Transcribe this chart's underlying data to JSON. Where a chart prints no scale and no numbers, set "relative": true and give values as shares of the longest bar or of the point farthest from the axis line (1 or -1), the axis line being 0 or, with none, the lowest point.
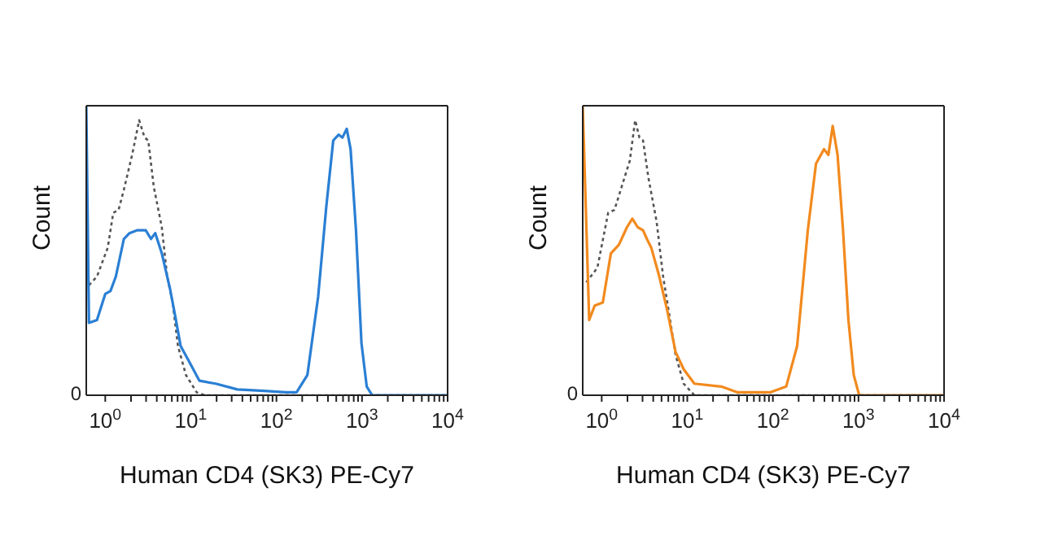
{
  "chart_data": [
    {
      "type": "line",
      "xlabel": "Human CD4 (SK3) PE-Cy7",
      "ylabel": "Count",
      "relative": true,
      "log": "x",
      "xlim": [
        0.6,
        10000
      ],
      "xticks": [
        {
          "value": 1,
          "label": "10$^{0}$"
        },
        {
          "value": 2,
          "label": null
        },
        {
          "value": 3,
          "label": null
        },
        {
          "value": 4,
          "label": null
        },
        {
          "value": 5,
          "label": null
        },
        {
          "value": 6,
          "label": null
        },
        {
          "value": 7,
          "label": null
        },
        {
          "value": 8,
          "label": null
        },
        {
          "value": 9,
          "label": null
        },
        {
          "value": 10,
          "label": "10$^{1}$"
        },
        {
          "value": 20,
          "label": null
        },
        {
          "value": 30,
          "label": null
        },
        {
          "value": 40,
          "label": null
        },
        {
          "value": 50,
          "label": null
        },
        {
          "value": 60,
          "label": null
        },
        {
          "value": 70,
          "label": null
        },
        {
          "value": 80,
          "label": null
        },
        {
          "value": 90,
          "label": null
        },
        {
          "value": 100,
          "label": "10$^{2}$"
        },
        {
          "value": 200,
          "label": null
        },
        {
          "value": 300,
          "label": null
        },
        {
          "value": 400,
          "label": null
        },
        {
          "value": 500,
          "label": null
        },
        {
          "value": 600,
          "label": null
        },
        {
          "value": 700,
          "label": null
        },
        {
          "value": 800,
          "label": null
        },
        {
          "value": 900,
          "label": null
        },
        {
          "value": 1000,
          "label": "10$^{3}$"
        },
        {
          "value": 2000,
          "label": null
        },
        {
          "value": 3000,
          "label": null
        },
        {
          "value": 4000,
          "label": null
        },
        {
          "value": 5000,
          "label": null
        },
        {
          "value": 6000,
          "label": null
        },
        {
          "value": 7000,
          "label": null
        },
        {
          "value": 8000,
          "label": null
        },
        {
          "value": 9000,
          "label": null
        },
        {
          "value": 10000,
          "label": "10$^{4}$"
        }
      ],
      "annotations": [
        "0"
      ],
      "marker": "none",
      "series": [
        {
          "color": "#555555",
          "line_style": "dotted",
          "x": [
            0.645,
            0.8,
            1.07,
            1.24,
            1.43,
            1.65,
            2.06,
            2.49,
            2.88,
            3.18,
            3.69,
            4.58,
            5.29,
            6.13,
            7.07,
            8.76,
            11.7,
            14.6,
            10000
          ],
          "values": [
            0.38,
            0.41,
            0.51,
            0.63,
            0.64,
            0.71,
            0.83,
            0.95,
            0.89,
            0.88,
            0.72,
            0.58,
            0.41,
            0.32,
            0.17,
            0.07,
            0.01,
            0,
            0
          ]
        },
        {
          "color": "#2a7fd4",
          "line_style": "solid",
          "x": [
            0.6,
            0.645,
            0.8,
            1.0,
            1.15,
            1.33,
            1.65,
            1.92,
            2.38,
            2.97,
            3.42,
            3.84,
            4.58,
            5.69,
            6.6,
            7.6,
            9.4,
            12.6,
            19.5,
            35,
            72,
            128,
            172,
            230,
            307,
            382,
            461,
            533,
            590,
            663,
            735,
            850,
            985,
            1135,
            1314,
            10000
          ],
          "values": [
            1,
            0.25,
            0.26,
            0.35,
            0.36,
            0.41,
            0.54,
            0.56,
            0.57,
            0.57,
            0.54,
            0.56,
            0.49,
            0.37,
            0.27,
            0.17,
            0.12,
            0.05,
            0.04,
            0.02,
            0.015,
            0.01,
            0.01,
            0.07,
            0.34,
            0.65,
            0.88,
            0.9,
            0.89,
            0.92,
            0.85,
            0.57,
            0.18,
            0.03,
            0,
            0
          ]
        }
      ]
    },
    {
      "type": "line",
      "xlabel": "Human CD4 (SK3) PE-Cy7",
      "ylabel": "Count",
      "relative": true,
      "log": "x",
      "xlim": [
        0.6,
        10000
      ],
      "xticks": [
        {
          "value": 1,
          "label": "10$^{0}$"
        },
        {
          "value": 2,
          "label": null
        },
        {
          "value": 3,
          "label": null
        },
        {
          "value": 4,
          "label": null
        },
        {
          "value": 5,
          "label": null
        },
        {
          "value": 6,
          "label": null
        },
        {
          "value": 7,
          "label": null
        },
        {
          "value": 8,
          "label": null
        },
        {
          "value": 9,
          "label": null
        },
        {
          "value": 10,
          "label": "10$^{1}$"
        },
        {
          "value": 20,
          "label": null
        },
        {
          "value": 30,
          "label": null
        },
        {
          "value": 40,
          "label": null
        },
        {
          "value": 50,
          "label": null
        },
        {
          "value": 60,
          "label": null
        },
        {
          "value": 70,
          "label": null
        },
        {
          "value": 80,
          "label": null
        },
        {
          "value": 90,
          "label": null
        },
        {
          "value": 100,
          "label": "10$^{2}$"
        },
        {
          "value": 200,
          "label": null
        },
        {
          "value": 300,
          "label": null
        },
        {
          "value": 400,
          "label": null
        },
        {
          "value": 500,
          "label": null
        },
        {
          "value": 600,
          "label": null
        },
        {
          "value": 700,
          "label": null
        },
        {
          "value": 800,
          "label": null
        },
        {
          "value": 900,
          "label": null
        },
        {
          "value": 1000,
          "label": "10$^{3}$"
        },
        {
          "value": 2000,
          "label": null
        },
        {
          "value": 3000,
          "label": null
        },
        {
          "value": 4000,
          "label": null
        },
        {
          "value": 5000,
          "label": null
        },
        {
          "value": 6000,
          "label": null
        },
        {
          "value": 7000,
          "label": null
        },
        {
          "value": 8000,
          "label": null
        },
        {
          "value": 9000,
          "label": null
        },
        {
          "value": 10000,
          "label": "10$^{4}$"
        }
      ],
      "annotations": [
        "0"
      ],
      "marker": "none",
      "series": [
        {
          "color": "#555555",
          "line_style": "dotted",
          "x": [
            0.66,
            0.89,
            1.19,
            1.41,
            1.71,
            2.13,
            2.46,
            2.76,
            3.04,
            3.52,
            4.38,
            5.22,
            6.3,
            7.29,
            9.07,
            12.1,
            10000
          ],
          "values": [
            0.39,
            0.44,
            0.63,
            0.64,
            0.72,
            0.81,
            0.95,
            0.89,
            0.88,
            0.75,
            0.6,
            0.41,
            0.26,
            0.14,
            0.04,
            0,
            0
          ]
        },
        {
          "color": "#f28a1e",
          "line_style": "solid",
          "x": [
            0.6,
            0.714,
            0.83,
            1.03,
            1.28,
            1.59,
            1.97,
            2.28,
            2.64,
            3.04,
            3.37,
            3.79,
            4.71,
            5.86,
            7.29,
            9.07,
            12.1,
            25,
            38.7,
            92.7,
            143,
            192,
            256,
            319,
            396,
            445,
            500,
            570,
            660,
            763,
            881,
            1019,
            10000
          ],
          "values": [
            1,
            0.26,
            0.31,
            0.32,
            0.49,
            0.52,
            0.58,
            0.61,
            0.58,
            0.57,
            0.54,
            0.51,
            0.41,
            0.29,
            0.15,
            0.09,
            0.04,
            0.03,
            0.01,
            0.01,
            0.03,
            0.17,
            0.57,
            0.8,
            0.85,
            0.83,
            0.93,
            0.83,
            0.57,
            0.26,
            0.07,
            0,
            0
          ]
        }
      ]
    }
  ]
}
